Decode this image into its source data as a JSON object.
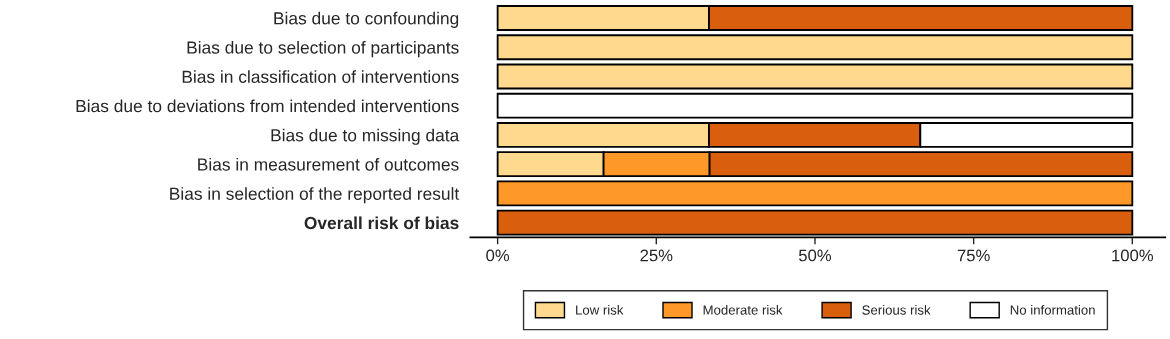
{
  "chart_data": {
    "type": "bar",
    "orientation": "horizontal",
    "stacked": true,
    "categories": [
      "Bias due to confounding",
      "Bias due to selection of participants",
      "Bias in classification of interventions",
      "Bias due to deviations from intended interventions",
      "Bias due to missing data",
      "Bias in measurement of outcomes",
      "Bias in selection of the reported result",
      "Overall risk of bias"
    ],
    "series": [
      {
        "name": "Low risk",
        "color": "#fed98e",
        "values": [
          33.3,
          100,
          100,
          0,
          33.3,
          16.7,
          0,
          0
        ]
      },
      {
        "name": "Moderate risk",
        "color": "#fe9929",
        "values": [
          0,
          0,
          0,
          0,
          0,
          16.7,
          100,
          0
        ]
      },
      {
        "name": "Serious risk",
        "color": "#d95f0e",
        "values": [
          66.7,
          0,
          0,
          0,
          33.3,
          66.6,
          0,
          100
        ]
      },
      {
        "name": "No information",
        "color": "#ffffff",
        "values": [
          0,
          0,
          0,
          100,
          33.4,
          0,
          0,
          0
        ]
      }
    ],
    "xlim": [
      -4.3,
      105.2
    ],
    "xticks": [
      {
        "value": 0,
        "label": "0%"
      },
      {
        "value": 25,
        "label": "25%"
      },
      {
        "value": 50,
        "label": "50%"
      },
      {
        "value": 75,
        "label": "75%"
      },
      {
        "value": 100,
        "label": "100%"
      }
    ],
    "grid": false,
    "legend": "bottom"
  }
}
